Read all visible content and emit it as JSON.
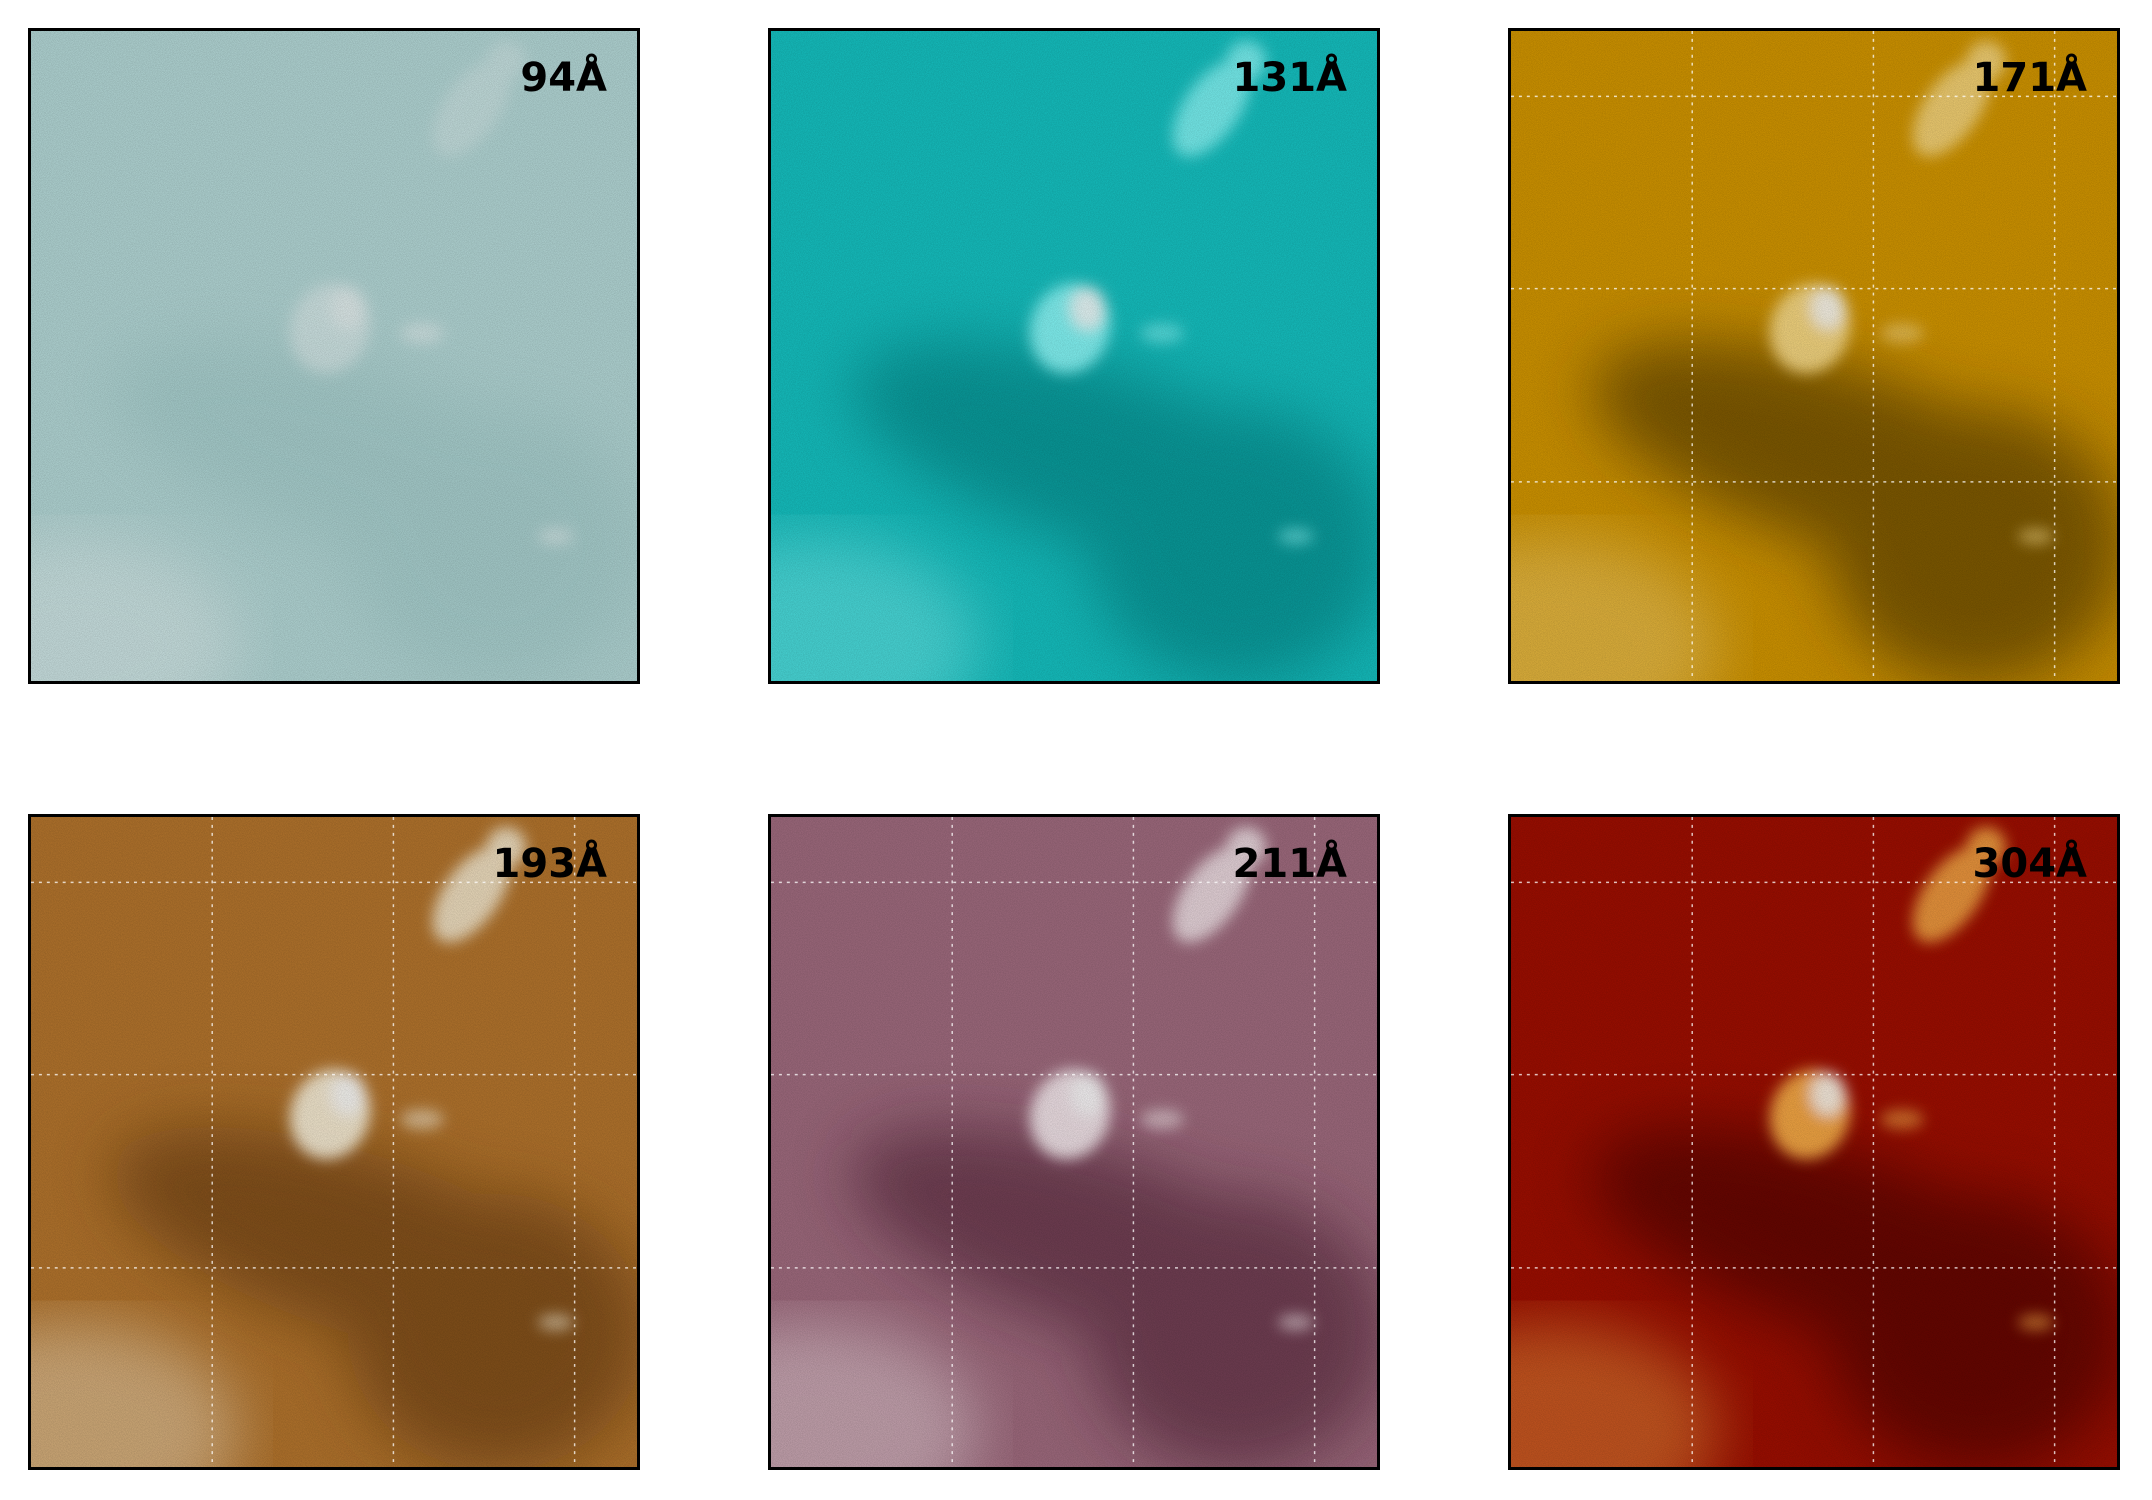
{
  "panels": [
    {
      "label": "94Å",
      "bg": "#b9dedd",
      "dark": "#6ea8a6",
      "bright": "#eef8f8",
      "grid": false
    },
    {
      "label": "131Å",
      "bg": "#16c7c7",
      "dark": "#007f80",
      "bright": "#8cffff",
      "grid": false
    },
    {
      "label": "171Å",
      "bg": "#d89a00",
      "dark": "#3d2a00",
      "bright": "#ffe08a",
      "grid": true
    },
    {
      "label": "193Å",
      "bg": "#b9782e",
      "dark": "#5f3408",
      "bright": "#fff6de",
      "grid": true
    },
    {
      "label": "211Å",
      "bg": "#a46e82",
      "dark": "#4e1f33",
      "bright": "#fbeef2",
      "grid": true
    },
    {
      "label": "304Å",
      "bg": "#a30f00",
      "dark": "#3e0200",
      "bright": "#ffb24a",
      "grid": true
    }
  ]
}
